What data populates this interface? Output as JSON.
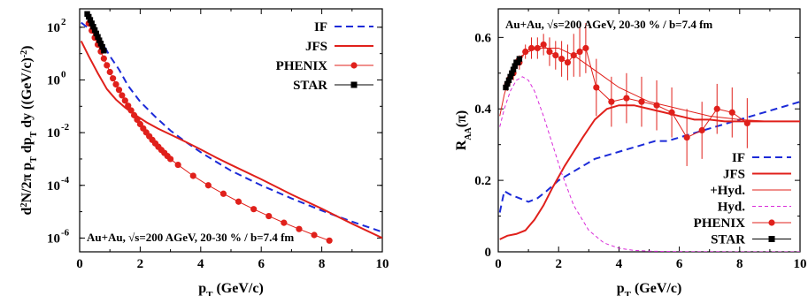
{
  "chart_data": [
    {
      "type": "line",
      "xlabel": "p_T (GeV/c)",
      "ylabel": "d^2N/2π p_T dp_T dy ((GeV/c)^-2)",
      "xlim": [
        0,
        10
      ],
      "ylim": [
        3e-07,
        500
      ],
      "yscale": "log",
      "xticks": [
        "0",
        "2",
        "4",
        "6",
        "8",
        "10"
      ],
      "yticks": [
        {
          "v": 100,
          "e": "2"
        },
        {
          "v": 1,
          "e": "0"
        },
        {
          "v": 0.01,
          "e": "-2"
        },
        {
          "v": 0.0001,
          "e": "-4"
        },
        {
          "v": 1e-06,
          "e": "-6"
        }
      ],
      "annotation": "Au+Au, √s=200 AGeV, 20-30 % / b=7.4 fm",
      "legend_position": "top-right",
      "series": [
        {
          "name": "IF",
          "style": "dashed",
          "color": "#1c2bd8",
          "x": [
            0.05,
            0.2,
            0.4,
            0.6,
            0.8,
            1.0,
            1.3,
            1.6,
            2.0,
            2.5,
            3.0,
            3.5,
            4.0,
            4.5,
            5.0,
            6.0,
            7.0,
            8.0,
            9.0,
            10.0
          ],
          "y": [
            150,
            110,
            70,
            40,
            20,
            8,
            2.5,
            0.6,
            0.15,
            0.04,
            0.012,
            0.0045,
            0.0018,
            0.0008,
            0.00036,
            0.0001,
            3.2e-05,
            1.1e-05,
            4.2e-06,
            1.7e-06
          ]
        },
        {
          "name": "JFS",
          "style": "solid",
          "color": "#e0201b",
          "x": [
            0.05,
            0.3,
            0.6,
            0.9,
            1.2,
            1.5,
            1.8,
            2.2,
            2.6,
            3.0,
            3.5,
            4.0,
            4.5,
            5.0,
            6.0,
            7.0,
            8.0,
            9.0,
            10.0
          ],
          "y": [
            30,
            8,
            1.8,
            0.45,
            0.18,
            0.09,
            0.05,
            0.025,
            0.014,
            0.0085,
            0.0045,
            0.0023,
            0.00115,
            0.0006,
            0.00017,
            4.5e-05,
            1.3e-05,
            3.5e-06,
            1e-06
          ]
        },
        {
          "name": "PHENIX",
          "style": "points",
          "color": "#e0201b",
          "x": [
            0.3,
            0.4,
            0.5,
            0.6,
            0.7,
            0.8,
            0.9,
            1.0,
            1.1,
            1.2,
            1.3,
            1.4,
            1.5,
            1.6,
            1.7,
            1.8,
            1.9,
            2.0,
            2.1,
            2.2,
            2.3,
            2.4,
            2.5,
            2.6,
            2.7,
            2.8,
            2.9,
            3.0,
            3.25,
            3.75,
            4.25,
            4.75,
            5.25,
            5.75,
            6.25,
            6.75,
            7.25,
            7.75,
            8.25
          ],
          "y": [
            140,
            75,
            40,
            22,
            12,
            6.5,
            3.6,
            2.0,
            1.15,
            0.68,
            0.42,
            0.26,
            0.165,
            0.105,
            0.07,
            0.046,
            0.031,
            0.021,
            0.0145,
            0.0102,
            0.0073,
            0.0053,
            0.0039,
            0.0029,
            0.0022,
            0.0017,
            0.0013,
            0.001,
            0.0006,
            0.00023,
            0.0001,
            4.8e-05,
            2.4e-05,
            1.25e-05,
            6.8e-06,
            3.8e-06,
            2.2e-06,
            1.3e-06,
            8e-07
          ]
        },
        {
          "name": "STAR",
          "style": "squares",
          "color": "#000000",
          "x": [
            0.25,
            0.3,
            0.35,
            0.4,
            0.45,
            0.5,
            0.55,
            0.6,
            0.65,
            0.7,
            0.75,
            0.8
          ],
          "y": [
            320,
            250,
            190,
            140,
            105,
            78,
            58,
            43,
            32,
            24,
            18,
            13
          ]
        }
      ]
    },
    {
      "type": "line",
      "xlabel": "p_T (GeV/c)",
      "ylabel": "R_AA(π)",
      "xlim": [
        0,
        10
      ],
      "ylim": [
        0,
        0.68
      ],
      "xticks": [
        "0",
        "2",
        "4",
        "6",
        "8",
        "10"
      ],
      "yticks": [
        "0",
        "0.2",
        "0.4",
        "0.6"
      ],
      "annotation": "Au+Au, √s=200 AGeV, 20-30 % / b=7.4 fm",
      "legend_position": "bottom-right",
      "series": [
        {
          "name": "IF",
          "style": "dashed",
          "color": "#1c2bd8",
          "x": [
            0.05,
            0.2,
            0.4,
            0.7,
            1.0,
            1.3,
            1.6,
            2.0,
            2.4,
            2.8,
            3.2,
            3.6,
            4.0,
            4.4,
            4.8,
            5.2,
            5.6,
            6.0,
            6.4,
            6.8,
            7.2,
            7.6,
            8.0,
            8.4,
            8.8,
            9.2,
            9.6,
            10.0
          ],
          "y": [
            0.11,
            0.17,
            0.16,
            0.15,
            0.14,
            0.15,
            0.17,
            0.2,
            0.22,
            0.24,
            0.26,
            0.27,
            0.28,
            0.29,
            0.3,
            0.31,
            0.31,
            0.32,
            0.33,
            0.34,
            0.35,
            0.36,
            0.37,
            0.38,
            0.39,
            0.4,
            0.41,
            0.42
          ]
        },
        {
          "name": "JFS",
          "style": "solid",
          "color": "#e0201b",
          "x": [
            0.05,
            0.3,
            0.6,
            0.9,
            1.2,
            1.5,
            1.8,
            2.0,
            2.2,
            2.5,
            2.8,
            3.2,
            3.6,
            4.0,
            4.5,
            5.0,
            5.5,
            6.0,
            6.5,
            7.0,
            7.5,
            8.0,
            9.0,
            10.0
          ],
          "y": [
            0.035,
            0.045,
            0.05,
            0.06,
            0.09,
            0.13,
            0.18,
            0.21,
            0.24,
            0.28,
            0.32,
            0.37,
            0.4,
            0.41,
            0.41,
            0.4,
            0.39,
            0.38,
            0.37,
            0.37,
            0.365,
            0.365,
            0.365,
            0.365
          ]
        },
        {
          "name": "+Hyd.",
          "style": "thin",
          "color": "#e0201b",
          "x": [
            0.05,
            0.2,
            0.4,
            0.6,
            0.8,
            1.0,
            1.3,
            1.6,
            2.0,
            2.5,
            3.0,
            3.5,
            4.0,
            4.5,
            5.0,
            6.0,
            7.0,
            8.0,
            9.0,
            10.0
          ],
          "y": [
            0.38,
            0.44,
            0.5,
            0.54,
            0.55,
            0.56,
            0.57,
            0.57,
            0.57,
            0.55,
            0.52,
            0.49,
            0.46,
            0.44,
            0.42,
            0.4,
            0.38,
            0.37,
            0.365,
            0.365
          ]
        },
        {
          "name": "Hyd.",
          "style": "dashed-thin",
          "color": "#d92bd9",
          "x": [
            0.05,
            0.2,
            0.4,
            0.6,
            0.8,
            1.0,
            1.2,
            1.5,
            1.8,
            2.1,
            2.5,
            3.0,
            3.5,
            4.0,
            4.5,
            5.0,
            5.5,
            6.0,
            7.0,
            8.0,
            10.0
          ],
          "y": [
            0.35,
            0.4,
            0.45,
            0.48,
            0.49,
            0.48,
            0.45,
            0.38,
            0.3,
            0.22,
            0.13,
            0.06,
            0.025,
            0.01,
            0.004,
            0.002,
            0.001,
            0.0005,
            0.0002,
            0.0001,
            0.0
          ]
        },
        {
          "name": "PHENIX",
          "style": "points",
          "color": "#e0201b",
          "x": [
            0.3,
            0.5,
            0.7,
            0.9,
            1.1,
            1.3,
            1.5,
            1.7,
            1.9,
            2.1,
            2.3,
            2.5,
            2.7,
            2.9,
            3.25,
            3.75,
            4.25,
            4.75,
            5.25,
            5.75,
            6.25,
            6.75,
            7.25,
            7.75,
            8.25
          ],
          "y": [
            0.47,
            0.5,
            0.53,
            0.56,
            0.57,
            0.57,
            0.58,
            0.56,
            0.55,
            0.54,
            0.53,
            0.55,
            0.56,
            0.57,
            0.46,
            0.42,
            0.43,
            0.42,
            0.41,
            0.39,
            0.32,
            0.34,
            0.4,
            0.39,
            0.36
          ],
          "err": [
            0.02,
            0.02,
            0.02,
            0.02,
            0.03,
            0.03,
            0.03,
            0.04,
            0.04,
            0.05,
            0.05,
            0.06,
            0.07,
            0.07,
            0.08,
            0.07,
            0.07,
            0.07,
            0.07,
            0.07,
            0.08,
            0.08,
            0.07,
            0.07,
            0.07
          ]
        },
        {
          "name": "STAR",
          "style": "squares",
          "color": "#000000",
          "x": [
            0.25,
            0.3,
            0.35,
            0.4,
            0.45,
            0.5,
            0.55,
            0.6,
            0.65,
            0.7
          ],
          "y": [
            0.46,
            0.47,
            0.48,
            0.49,
            0.5,
            0.51,
            0.52,
            0.53,
            0.53,
            0.54
          ]
        }
      ]
    }
  ]
}
